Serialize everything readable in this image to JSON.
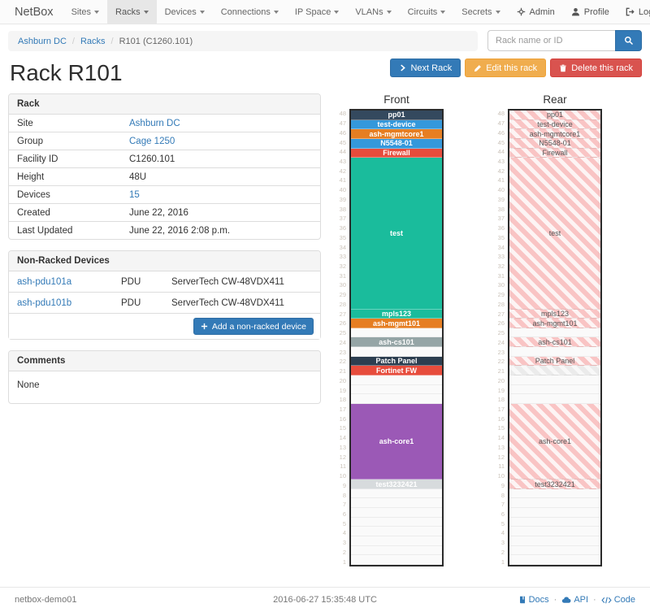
{
  "navbar": {
    "brand": "NetBox",
    "items": [
      {
        "label": "Sites",
        "active": false
      },
      {
        "label": "Racks",
        "active": true
      },
      {
        "label": "Devices",
        "active": false
      },
      {
        "label": "Connections",
        "active": false
      },
      {
        "label": "IP Space",
        "active": false
      },
      {
        "label": "VLANs",
        "active": false
      },
      {
        "label": "Circuits",
        "active": false
      },
      {
        "label": "Secrets",
        "active": false
      }
    ],
    "right": [
      {
        "label": "Admin",
        "icon": "gear-icon"
      },
      {
        "label": "Profile",
        "icon": "user-icon"
      },
      {
        "label": "Log out",
        "icon": "log-out-icon"
      }
    ]
  },
  "breadcrumb": [
    {
      "label": "Ashburn DC",
      "link": true
    },
    {
      "label": "Racks",
      "link": true
    },
    {
      "label": "R101 (C1260.101)",
      "link": false
    }
  ],
  "search": {
    "placeholder": "Rack name or ID"
  },
  "actions": [
    {
      "label": "Next Rack",
      "icon": "chevron-right-icon",
      "variant": "primary"
    },
    {
      "label": "Edit this rack",
      "icon": "pencil-icon",
      "variant": "warning"
    },
    {
      "label": "Delete this rack",
      "icon": "trash-icon",
      "variant": "danger"
    }
  ],
  "page_title": "Rack R101",
  "rack_info": {
    "title": "Rack",
    "rows": [
      {
        "label": "Site",
        "value": "Ashburn DC",
        "link": true
      },
      {
        "label": "Group",
        "value": "Cage 1250",
        "link": true
      },
      {
        "label": "Facility ID",
        "value": "C1260.101",
        "link": false
      },
      {
        "label": "Height",
        "value": "48U",
        "link": false
      },
      {
        "label": "Devices",
        "value": "15",
        "link": true
      },
      {
        "label": "Created",
        "value": "June 22, 2016",
        "link": false
      },
      {
        "label": "Last Updated",
        "value": "June 22, 2016 2:08 p.m.",
        "link": false
      }
    ]
  },
  "non_racked": {
    "title": "Non-Racked Devices",
    "rows": [
      {
        "name": "ash-pdu101a",
        "role": "PDU",
        "model": "ServerTech CW-48VDX411"
      },
      {
        "name": "ash-pdu101b",
        "role": "PDU",
        "model": "ServerTech CW-48VDX411"
      }
    ],
    "add_button": "Add a non-racked device"
  },
  "comments": {
    "title": "Comments",
    "body": "None"
  },
  "elevation": {
    "front_title": "Front",
    "rear_title": "Rear",
    "total_units": 48,
    "colors": {
      "dark": "#34495e",
      "blue": "#3498db",
      "orange": "#e67e22",
      "red": "#e74c3c",
      "teal": "#1abc9c",
      "purple": "#9b59b6",
      "gray": "#95a5a6",
      "light_gray": "#d7dbdd",
      "rear_stripe": "#f9c4c4"
    },
    "units": [
      {
        "u": 48,
        "size": 1,
        "label": "pp01",
        "color": "#34495e"
      },
      {
        "u": 47,
        "size": 1,
        "label": "test-device",
        "color": "#3498db"
      },
      {
        "u": 46,
        "size": 1,
        "label": "ash-mgmtcore1",
        "color": "#e67e22"
      },
      {
        "u": 45,
        "size": 1,
        "label": "N5548-01",
        "color": "#3498db"
      },
      {
        "u": 44,
        "size": 1,
        "label": "Firewall",
        "color": "#e74c3c"
      },
      {
        "u": 43,
        "size": 16,
        "label": "test",
        "color": "#1abc9c"
      },
      {
        "u": 27,
        "size": 1,
        "label": "mpls123",
        "color": "#1abc9c"
      },
      {
        "u": 26,
        "size": 1,
        "label": "ash-mgmt101",
        "color": "#e67e22"
      },
      {
        "u": 25,
        "size": 1,
        "empty": true
      },
      {
        "u": 24,
        "size": 1,
        "label": "ash-cs101",
        "color": "#95a5a6"
      },
      {
        "u": 23,
        "size": 1,
        "empty": true
      },
      {
        "u": 22,
        "size": 1,
        "label": "Patch Panel",
        "color": "#2c3e50"
      },
      {
        "u": 21,
        "size": 1,
        "label": "Fortinet FW",
        "color": "#e74c3c",
        "rear": {
          "variant": "gray",
          "label": ""
        }
      },
      {
        "u": 20,
        "size": 3,
        "empty": true
      },
      {
        "u": 17,
        "size": 8,
        "label": "ash-core1",
        "color": "#9b59b6"
      },
      {
        "u": 9,
        "size": 1,
        "label": "test3232421",
        "color": "#d7dbdd"
      },
      {
        "u": 8,
        "size": 8,
        "empty": true
      }
    ]
  },
  "footer": {
    "hostname": "netbox-demo01",
    "timestamp": "2016-06-27 15:35:48 UTC",
    "links": [
      {
        "label": "Docs",
        "icon": "book-icon"
      },
      {
        "label": "API",
        "icon": "cloud-icon"
      },
      {
        "label": "Code",
        "icon": "code-icon"
      }
    ]
  }
}
